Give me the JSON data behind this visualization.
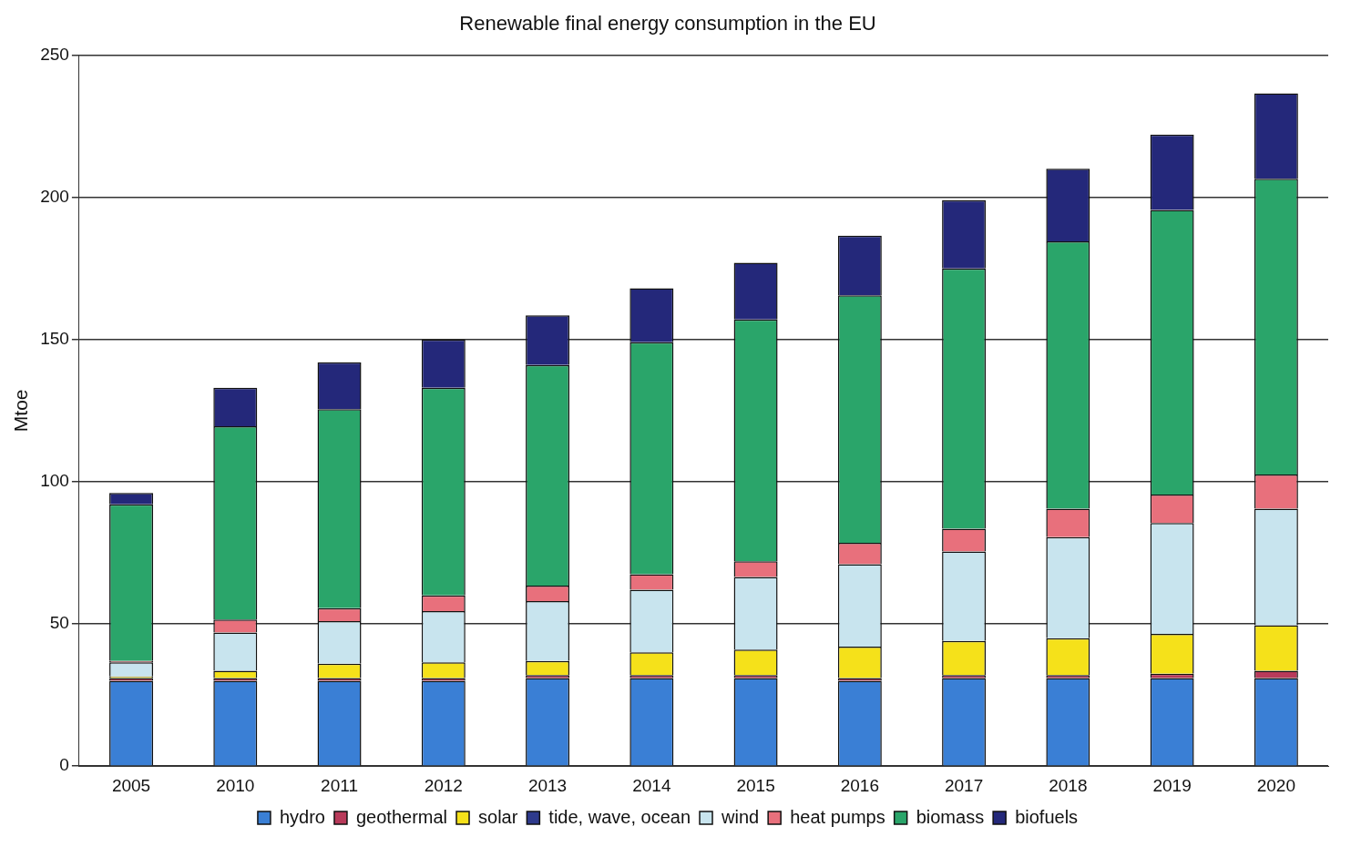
{
  "chart_data": {
    "type": "bar",
    "title": "Renewable final energy consumption in the EU",
    "ylabel": "Mtoe",
    "categories": [
      "2005",
      "2010",
      "2011",
      "2012",
      "2013",
      "2014",
      "2015",
      "2016",
      "2017",
      "2018",
      "2019",
      "2020"
    ],
    "stacked": true,
    "ylim": [
      0,
      250
    ],
    "yticks": [
      0,
      50,
      100,
      150,
      200,
      250
    ],
    "grid": "y",
    "legend": "bottom",
    "series": [
      {
        "name": "hydro",
        "color": "#3a7fd5",
        "values": [
          30,
          30,
          30,
          30,
          31,
          31,
          31,
          30,
          31,
          31,
          31,
          31
        ]
      },
      {
        "name": "geothermal",
        "color": "#b83a5a",
        "values": [
          1,
          1,
          1,
          1,
          1,
          1,
          1,
          1,
          1,
          1,
          1.5,
          2.5
        ]
      },
      {
        "name": "solar",
        "color": "#f5e11a",
        "values": [
          0.5,
          2.5,
          5,
          5.5,
          5,
          8,
          9,
          11,
          12,
          13,
          14,
          16
        ]
      },
      {
        "name": "tide, wave, ocean",
        "color": "#2e3a8c",
        "values": [
          0,
          0,
          0,
          0,
          0,
          0,
          0,
          0,
          0,
          0,
          0,
          0
        ]
      },
      {
        "name": "wind",
        "color": "#c8e4ee",
        "values": [
          5,
          13.5,
          15,
          18,
          21,
          22,
          25.5,
          29,
          31.5,
          35.5,
          39,
          41
        ]
      },
      {
        "name": "heat pumps",
        "color": "#e8707c",
        "values": [
          0.5,
          4.5,
          4.5,
          5.5,
          5.5,
          5.5,
          5.5,
          7.5,
          8,
          10,
          10,
          12
        ]
      },
      {
        "name": "biomass",
        "color": "#2aa56a",
        "values": [
          55,
          68,
          70,
          73,
          77.5,
          81.5,
          85,
          87,
          91.5,
          94,
          100,
          104
        ]
      },
      {
        "name": "biofuels",
        "color": "#24287a",
        "values": [
          4,
          13.5,
          16.5,
          17,
          17.5,
          19,
          20,
          21,
          24,
          25.5,
          26.5,
          30
        ]
      }
    ]
  }
}
